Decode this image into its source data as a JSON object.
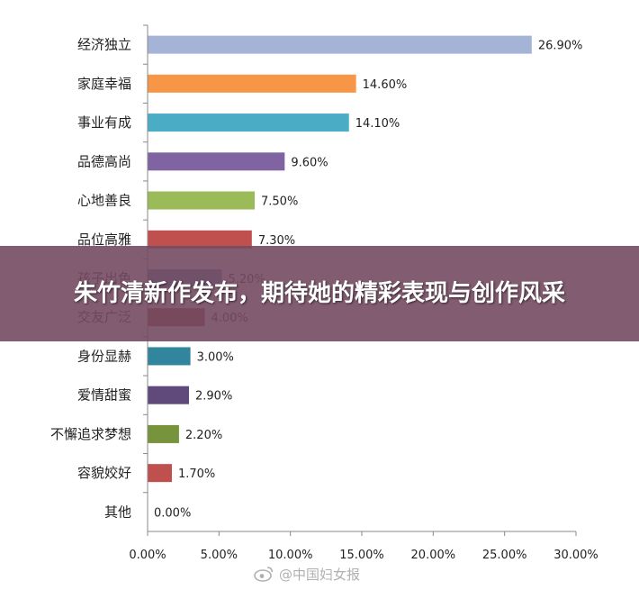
{
  "chart_data": {
    "type": "bar",
    "orientation": "horizontal",
    "categories": [
      "经济独立",
      "家庭幸福",
      "事业有成",
      "品德高尚",
      "心地善良",
      "品位高雅",
      "孩子出色",
      "交友广泛",
      "身份显赫",
      "爱情甜蜜",
      "不懈追求梦想",
      "容貌姣好",
      "其他"
    ],
    "values": [
      26.9,
      14.6,
      14.1,
      9.6,
      7.5,
      7.3,
      5.2,
      4.0,
      3.0,
      2.9,
      2.2,
      1.7,
      0.0
    ],
    "value_labels": [
      "26.90%",
      "14.60%",
      "14.10%",
      "9.60%",
      "7.50%",
      "7.30%",
      "5.20%",
      "4.00%",
      "3.00%",
      "2.90%",
      "2.20%",
      "1.70%",
      "0.00%"
    ],
    "colors": [
      "#A5B3D6",
      "#F79646",
      "#4BACC6",
      "#8064A2",
      "#9BBB59",
      "#C0504D",
      "#4F81BD",
      "#953735",
      "#31859C",
      "#604A7B",
      "#77933C",
      "#C0504D",
      "#4F81BD"
    ],
    "xlim": [
      0,
      30
    ],
    "xticks": [
      0,
      5,
      10,
      15,
      20,
      25,
      30
    ],
    "xtick_labels": [
      "0.00%",
      "5.00%",
      "10.00%",
      "15.00%",
      "20.00%",
      "25.00%",
      "30.00%"
    ],
    "grid": false,
    "legend": "none"
  },
  "overlay": {
    "headline": "朱竹清新作发布，期待她的精彩表现与创作风采"
  },
  "watermark": {
    "text": "@中国妇女报",
    "icon": "weibo-icon"
  }
}
